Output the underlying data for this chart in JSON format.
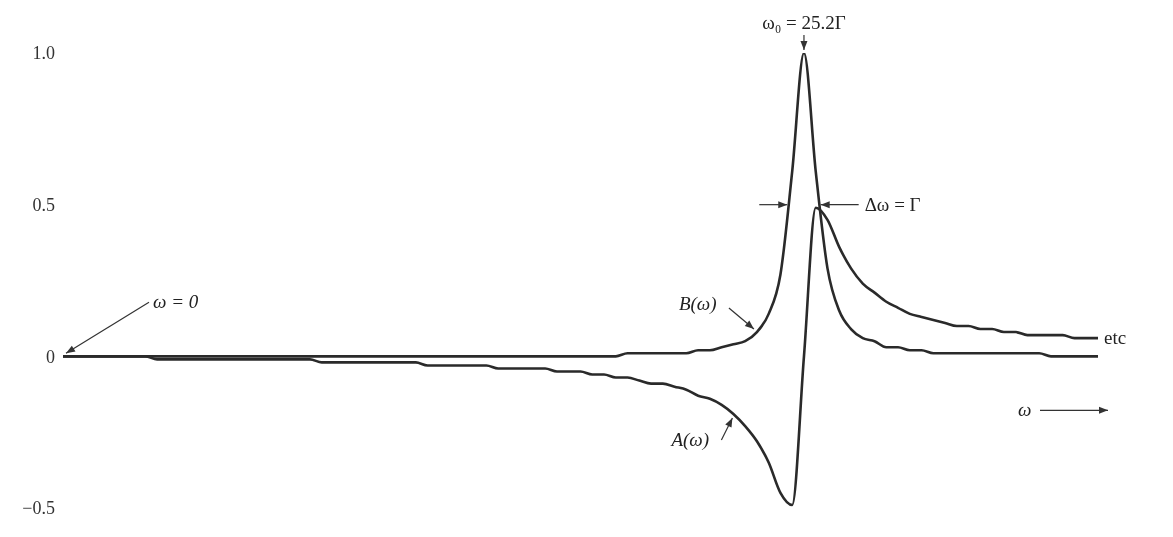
{
  "chart_data": {
    "type": "line",
    "categories": [
      null,
      null,
      null,
      null,
      null,
      null,
      null,
      null,
      null,
      null,
      null,
      null,
      null,
      null,
      null,
      null,
      null,
      null,
      null,
      null,
      null,
      null,
      null,
      null,
      null,
      null,
      null,
      null,
      null,
      null,
      null,
      null,
      null,
      null,
      null,
      null,
      null,
      null,
      null,
      null,
      null,
      null,
      null,
      null,
      null,
      null,
      null,
      null,
      null,
      null,
      null,
      null,
      null,
      null,
      null,
      null,
      null,
      null,
      null,
      null,
      null,
      null,
      null,
      null,
      null,
      null,
      null,
      null,
      null,
      null,
      null,
      null,
      null,
      null,
      null,
      null,
      null,
      null,
      null,
      null,
      null,
      null,
      null,
      null,
      null,
      null,
      null,
      null,
      null
    ],
    "series": [
      {
        "name": "A(ω)",
        "color": "#2a2a2a",
        "values": [
          0,
          0,
          0,
          0,
          0,
          0,
          0,
          0,
          -0.01,
          -0.01,
          -0.01,
          -0.01,
          -0.01,
          -0.01,
          -0.01,
          -0.01,
          -0.01,
          -0.01,
          -0.01,
          -0.01,
          -0.01,
          -0.01,
          -0.02,
          -0.02,
          -0.02,
          -0.02,
          -0.02,
          -0.02,
          -0.02,
          -0.02,
          -0.02,
          -0.03,
          -0.03,
          -0.03,
          -0.03,
          -0.03,
          -0.03,
          -0.04,
          -0.04,
          -0.04,
          -0.04,
          -0.04,
          -0.05,
          -0.05,
          -0.05,
          -0.06,
          -0.06,
          -0.07,
          -0.07,
          -0.08,
          -0.09,
          -0.09,
          -0.1,
          -0.11,
          -0.13,
          -0.14,
          -0.16,
          -0.19,
          -0.23,
          -0.28,
          -0.35,
          -0.45,
          -0.49,
          0,
          0.49,
          0.45,
          0.36,
          0.29,
          0.24,
          0.21,
          0.18,
          0.16,
          0.14,
          0.13,
          0.12,
          0.11,
          0.1,
          0.1,
          0.09,
          0.09,
          0.08,
          0.08,
          0.07,
          0.07,
          0.07,
          0.07,
          0.06,
          0.06,
          0.06
        ]
      },
      {
        "name": "B(ω)",
        "color": "#2a2a2a",
        "values": [
          0,
          0,
          0,
          0,
          0,
          0,
          0,
          0,
          0,
          0,
          0,
          0,
          0,
          0,
          0,
          0,
          0,
          0,
          0,
          0,
          0,
          0,
          0,
          0,
          0,
          0,
          0,
          0,
          0,
          0,
          0,
          0,
          0,
          0,
          0,
          0,
          0,
          0,
          0,
          0,
          0,
          0,
          0,
          0,
          0,
          0,
          0,
          0,
          0.01,
          0.01,
          0.01,
          0.01,
          0.01,
          0.01,
          0.02,
          0.02,
          0.03,
          0.04,
          0.05,
          0.08,
          0.14,
          0.27,
          0.61,
          1,
          0.61,
          0.29,
          0.15,
          0.09,
          0.06,
          0.05,
          0.03,
          0.03,
          0.02,
          0.02,
          0.01,
          0.01,
          0.01,
          0.01,
          0.01,
          0.01,
          0.01,
          0.01,
          0.01,
          0.01,
          0,
          0,
          0,
          0,
          0
        ]
      }
    ],
    "xlabel": "ω",
    "ylim": [
      -0.5,
      1
    ],
    "yticks": [
      {
        "value": -0.5,
        "label": "−0.5"
      },
      0,
      {
        "value": 0.5,
        "label": "0.5"
      },
      {
        "value": 1,
        "label": "1.0"
      }
    ],
    "tick_labels": "y",
    "marker": "none",
    "line_style": "solid",
    "annotations": [
      "ω₀ = 25.2Γ",
      "Δω = Γ",
      "ω = 0",
      "etc"
    ]
  }
}
